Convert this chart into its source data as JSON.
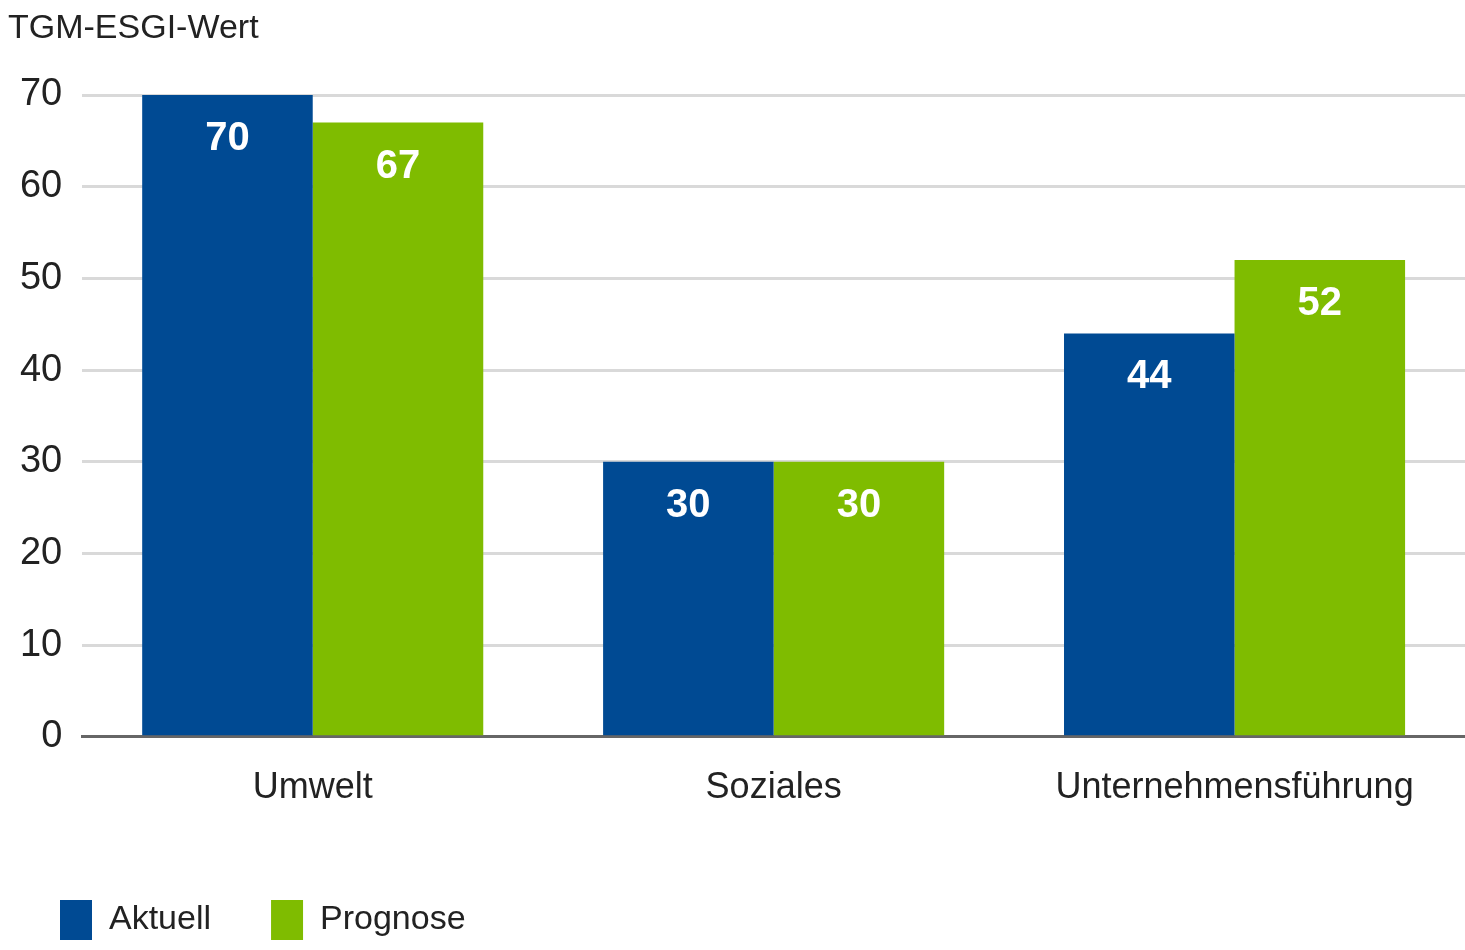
{
  "chart_data": {
    "type": "bar",
    "ylabel": "TGM-ESGI-Wert",
    "categories": [
      "Umwelt",
      "Soziales",
      "Unternehmensführung"
    ],
    "series": [
      {
        "name": "Aktuell",
        "color": "#004a93",
        "values": [
          70,
          30,
          44
        ]
      },
      {
        "name": "Prognose",
        "color": "#7fbc00",
        "values": [
          67,
          30,
          52
        ]
      }
    ],
    "ylim": [
      0,
      70
    ],
    "yticks": [
      0,
      10,
      20,
      30,
      40,
      50,
      60,
      70
    ],
    "grid": "y",
    "legend": "bottom left",
    "data_labels": true
  }
}
